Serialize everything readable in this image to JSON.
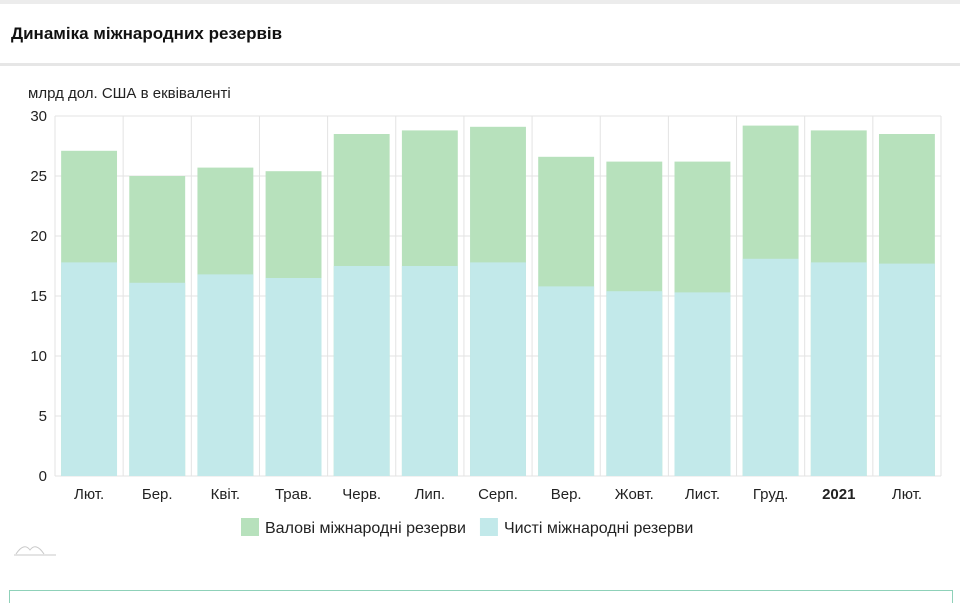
{
  "page": {
    "title": "Динаміка міжнародних резервів"
  },
  "chart_data": {
    "type": "bar",
    "stacked": false,
    "overlapped": true,
    "unit_label": "млрд дол. США в еквіваленті",
    "categories": [
      "Лют.",
      "Бер.",
      "Квіт.",
      "Трав.",
      "Черв.",
      "Лип.",
      "Серп.",
      "Вер.",
      "Жовт.",
      "Лист.",
      "Груд.",
      "2021",
      "Лют."
    ],
    "bold_categories": [
      "2021"
    ],
    "series": [
      {
        "name": "Валові міжнародні резерви",
        "color": "#b7e1bc",
        "values": [
          27.1,
          25.0,
          25.7,
          25.4,
          28.5,
          28.8,
          29.1,
          26.6,
          26.2,
          26.2,
          29.2,
          28.8,
          28.5
        ]
      },
      {
        "name": "Чисті міжнародні резерви",
        "color": "#c2e9ea",
        "values": [
          17.8,
          16.1,
          16.8,
          16.5,
          17.5,
          17.5,
          17.8,
          15.8,
          15.4,
          15.3,
          18.1,
          17.8,
          17.7
        ]
      }
    ],
    "ylim": [
      0,
      30
    ],
    "yticks": [
      0,
      5,
      10,
      15,
      20,
      25,
      30
    ],
    "grid": true,
    "legend_position": "bottom-center",
    "xlabel": "",
    "ylabel": ""
  }
}
